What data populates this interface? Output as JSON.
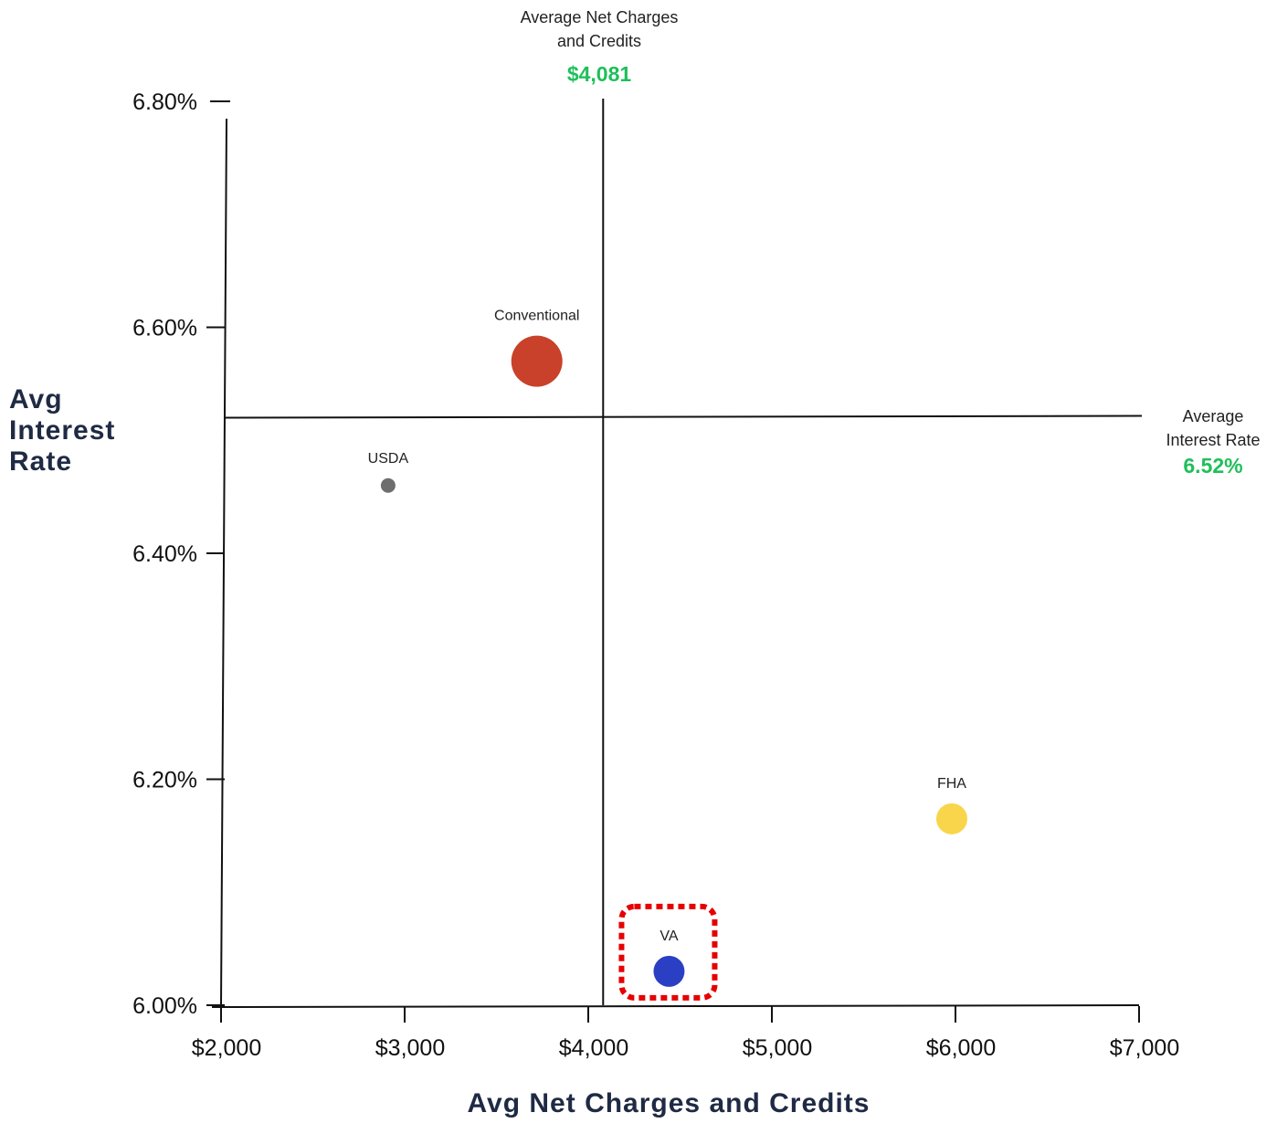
{
  "chart_data": {
    "type": "scatter",
    "xlabel": "Avg Net Charges and Credits",
    "ylabel": "Avg Interest Rate",
    "xlim": [
      2000,
      7000
    ],
    "ylim": [
      6.0,
      6.8
    ],
    "x_ticks": [
      2000,
      3000,
      4000,
      5000,
      6000,
      7000
    ],
    "x_tick_labels": [
      "$2,000",
      "$3,000",
      "$4,000",
      "$5,000",
      "$6,000",
      "$7,000"
    ],
    "y_ticks": [
      6.0,
      6.2,
      6.4,
      6.6,
      6.8
    ],
    "y_tick_labels": [
      "6.00%",
      "6.20%",
      "6.40%",
      "6.60%",
      "6.80%"
    ],
    "grid": false,
    "points": [
      {
        "label": "Conventional",
        "x": 3720,
        "y": 6.57,
        "color": "#c9412a",
        "size": "large"
      },
      {
        "label": "USDA",
        "x": 2910,
        "y": 6.46,
        "color": "#6e6e6e",
        "size": "small"
      },
      {
        "label": "FHA",
        "x": 5980,
        "y": 6.165,
        "color": "#f8d54a",
        "size": "medium"
      },
      {
        "label": "VA",
        "x": 4440,
        "y": 6.03,
        "color": "#2b3fc4",
        "size": "medium",
        "highlighted": true
      }
    ],
    "reference_lines": {
      "vertical": {
        "caption": "Average Net Charges and Credits",
        "value": 4081,
        "value_label": "$4,081",
        "color": "#1fbf5a"
      },
      "horizontal": {
        "caption": "Average Interest Rate",
        "value": 6.52,
        "value_label": "6.52%",
        "color": "#1fbf5a"
      }
    },
    "highlight_color": "#e60000"
  }
}
